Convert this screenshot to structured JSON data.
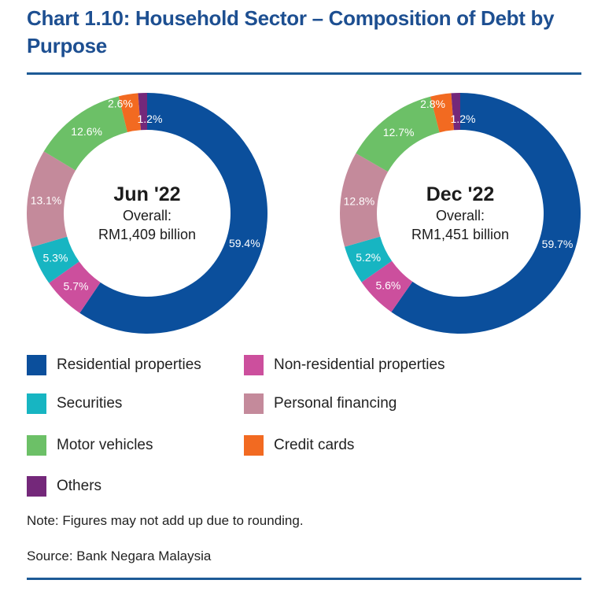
{
  "title": "Chart 1.10: Household Sector – Composition of Debt by Purpose",
  "note": "Note: Figures may not add up due to rounding.",
  "source": "Source: Bank Negara Malaysia",
  "legend": [
    {
      "name": "Residential properties",
      "color": "#0b4f9c"
    },
    {
      "name": "Non-residential properties",
      "color": "#cc4f9d"
    },
    {
      "name": "Securities",
      "color": "#17b5c2"
    },
    {
      "name": "Personal financing",
      "color": "#c48a9b"
    },
    {
      "name": "Motor vehicles",
      "color": "#6cc067"
    },
    {
      "name": "Credit cards",
      "color": "#f26a21"
    },
    {
      "name": "Others",
      "color": "#74287a"
    }
  ],
  "chart_data": [
    {
      "type": "pie",
      "variant": "donut",
      "title": "Jun '22",
      "subtitle_line1": "Overall:",
      "subtitle_line2": "RM1,409 billion",
      "total": 1409,
      "unit": "RM billion",
      "start": "12 o'clock",
      "direction": "clockwise",
      "categories": [
        "Residential properties",
        "Non-residential properties",
        "Securities",
        "Personal financing",
        "Motor vehicles",
        "Credit cards",
        "Others"
      ],
      "values": [
        59.4,
        5.7,
        5.3,
        13.1,
        12.6,
        2.6,
        1.2
      ],
      "labels": [
        "59.4%",
        "5.7%",
        "5.3%",
        "13.1%",
        "12.6%",
        "2.6%",
        "1.2%"
      ]
    },
    {
      "type": "pie",
      "variant": "donut",
      "title": "Dec '22",
      "subtitle_line1": "Overall:",
      "subtitle_line2": "RM1,451 billion",
      "total": 1451,
      "unit": "RM billion",
      "start": "12 o'clock",
      "direction": "clockwise",
      "categories": [
        "Residential properties",
        "Non-residential properties",
        "Securities",
        "Personal financing",
        "Motor vehicles",
        "Credit cards",
        "Others"
      ],
      "values": [
        59.7,
        5.6,
        5.2,
        12.8,
        12.7,
        2.8,
        1.2
      ],
      "labels": [
        "59.7%",
        "5.6%",
        "5.2%",
        "12.8%",
        "12.7%",
        "2.8%",
        "1.2%"
      ]
    }
  ]
}
